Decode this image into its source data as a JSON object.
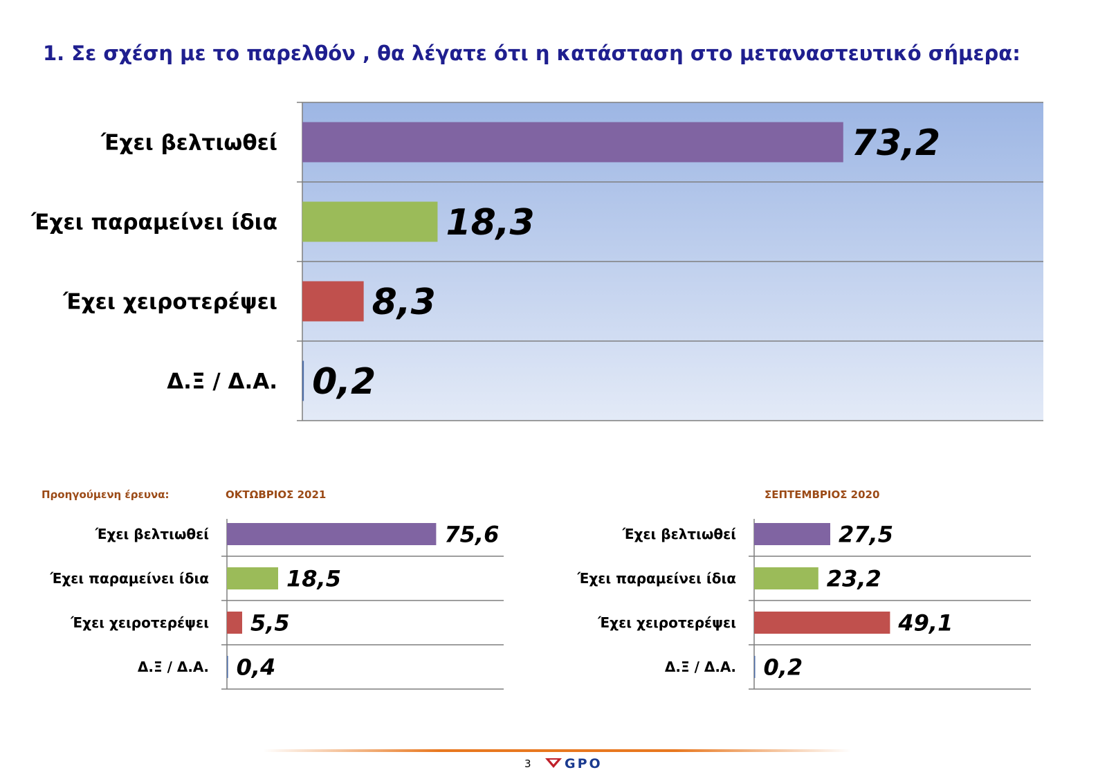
{
  "title": "1. Σε σχέση με το παρελθόν , θα λέγατε ότι η κατάσταση στο μεταναστευτικό σήμερα:",
  "previous_survey_label": "Προηγούμενη έρευνα:",
  "page_number": "3",
  "logo_text": "GPO",
  "colors": {
    "improved": "#8064a2",
    "same": "#9bbb59",
    "worse": "#c0504d",
    "dk": "#4f6fa8",
    "title": "#1f1f8f",
    "previous": "#9b4a16"
  },
  "chart_data": [
    {
      "type": "bar",
      "orientation": "horizontal",
      "subtitle": "",
      "categories": [
        "Έχει βελτιωθεί",
        "Έχει παραμείνει ίδια",
        "Έχει χειροτερέψει",
        "Δ.Ξ / Δ.Α."
      ],
      "values": [
        73.2,
        18.3,
        8.3,
        0.2
      ],
      "value_labels": [
        "73,2",
        "18,3",
        "8,3",
        "0,2"
      ],
      "xlim": [
        0,
        100
      ]
    },
    {
      "type": "bar",
      "orientation": "horizontal",
      "subtitle": "ΟΚΤΩΒΡΙΟΣ 2021",
      "categories": [
        "Έχει βελτιωθεί",
        "Έχει παραμείνει ίδια",
        "Έχει χειροτερέψει",
        "Δ.Ξ / Δ.Α."
      ],
      "values": [
        75.6,
        18.5,
        5.5,
        0.4
      ],
      "value_labels": [
        "75,6",
        "18,5",
        "5,5",
        "0,4"
      ],
      "xlim": [
        0,
        100
      ]
    },
    {
      "type": "bar",
      "orientation": "horizontal",
      "subtitle": "ΣΕΠΤΕΜΒΡΙΟΣ 2020",
      "categories": [
        "Έχει βελτιωθεί",
        "Έχει παραμείνει ίδια",
        "Έχει χειροτερέψει",
        "Δ.Ξ / Δ.Α."
      ],
      "values": [
        27.5,
        23.2,
        49.1,
        0.2
      ],
      "value_labels": [
        "27,5",
        "23,2",
        "49,1",
        "0,2"
      ],
      "xlim": [
        0,
        100
      ]
    }
  ]
}
